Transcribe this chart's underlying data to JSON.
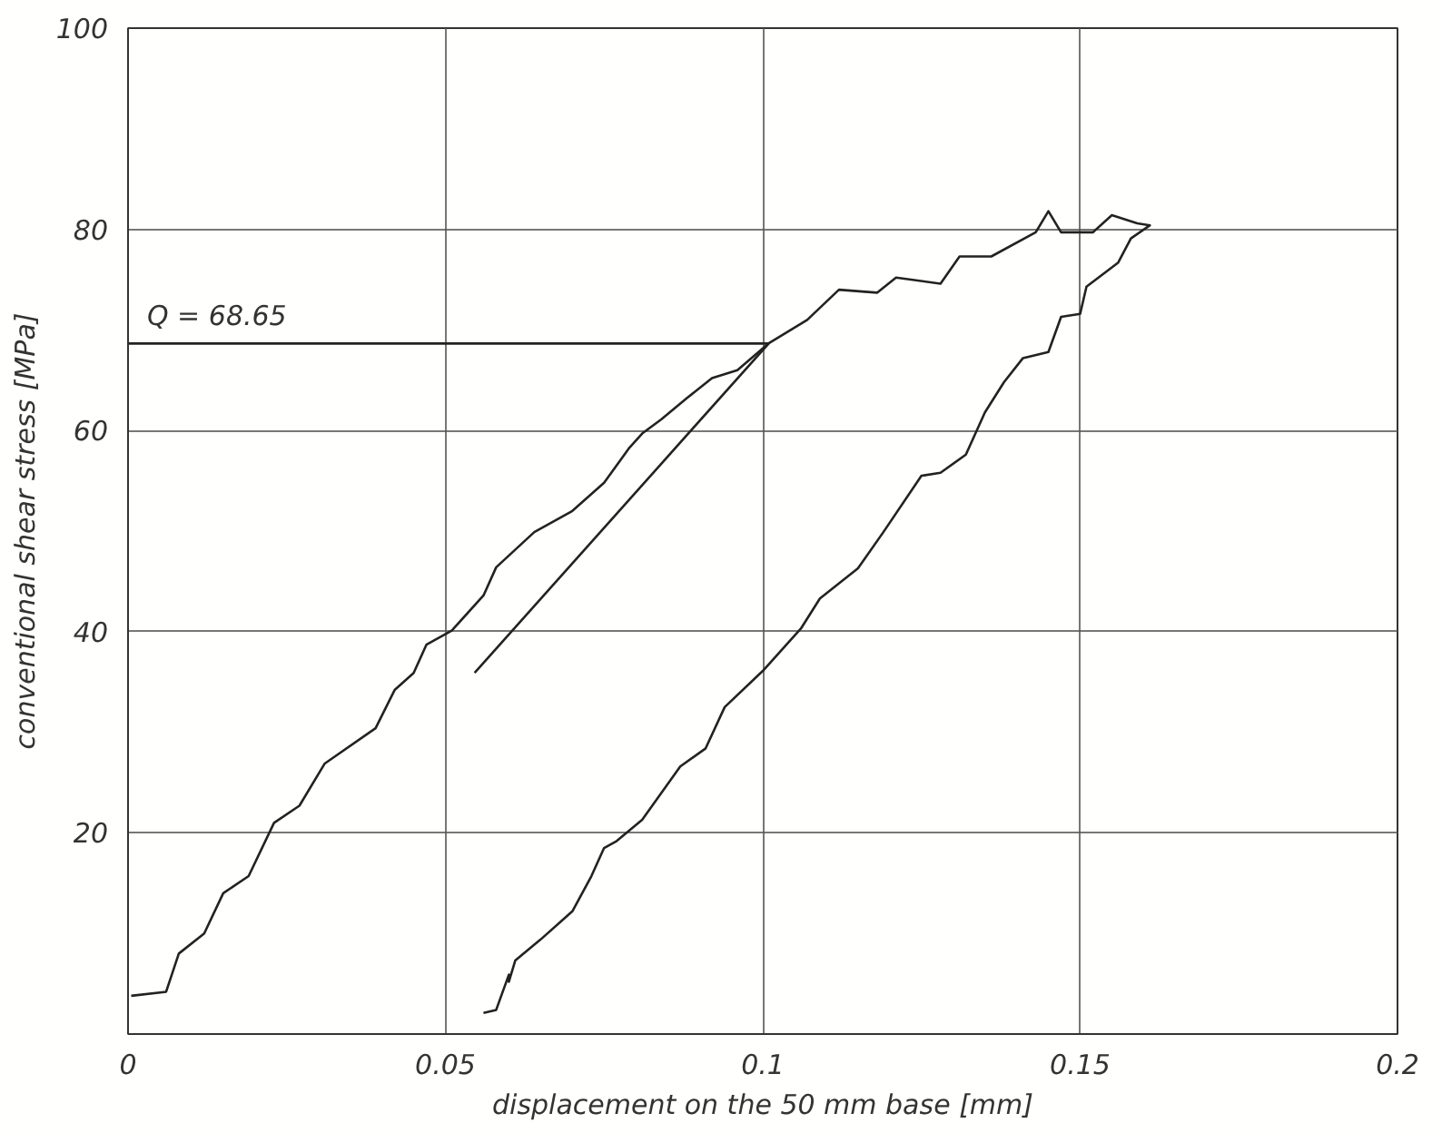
{
  "chart_data": {
    "type": "line",
    "xlabel": "displacement on the 50 mm base [mm]",
    "ylabel": "conventional shear stress [MPa]",
    "xlim": [
      0,
      0.2
    ],
    "ylim": [
      0,
      100
    ],
    "xticks": [
      0,
      0.05,
      0.1,
      0.15,
      0.2
    ],
    "yticks": [
      20,
      40,
      60,
      80,
      100
    ],
    "grid": true,
    "annotations": [
      {
        "text": "Q = 68.65",
        "x": 0.003,
        "y": 68.65
      }
    ],
    "series": [
      {
        "color": "#222222",
        "x": [
          0.0005,
          0.006,
          0.008,
          0.012,
          0.015,
          0.019,
          0.023,
          0.027,
          0.031,
          0.039,
          0.042,
          0.045,
          0.047,
          0.051,
          0.056,
          0.058,
          0.064,
          0.07,
          0.075,
          0.079,
          0.081,
          0.084,
          0.088,
          0.092,
          0.096,
          0.101,
          0.107,
          0.112,
          0.118,
          0.121,
          0.128,
          0.131,
          0.136,
          0.143,
          0.145,
          0.147,
          0.152,
          0.155,
          0.159,
          0.161,
          0.158,
          0.156,
          0.151,
          0.15,
          0.147,
          0.145,
          0.141,
          0.138,
          0.135,
          0.132,
          0.128,
          0.125,
          0.119,
          0.115,
          0.109,
          0.106,
          0.1,
          0.094,
          0.091,
          0.087,
          0.081,
          0.077,
          0.075,
          0.073,
          0.07,
          0.065,
          0.061,
          0.06,
          0.06,
          0.058,
          0.056
        ],
        "values": [
          3.8,
          4.2,
          8,
          10,
          14,
          15.7,
          21,
          22.7,
          26.9,
          30.4,
          34.2,
          35.9,
          38.7,
          40.1,
          43.6,
          46.4,
          49.9,
          52,
          54.8,
          58.3,
          59.7,
          61.1,
          63.2,
          65.2,
          66,
          68.7,
          71,
          74,
          73.7,
          75.2,
          74.6,
          77.3,
          77.3,
          79.7,
          81.8,
          79.7,
          79.7,
          81.4,
          80.6,
          80.4,
          79.1,
          76.7,
          74.3,
          71.6,
          71.3,
          67.8,
          67.2,
          64.8,
          61.8,
          57.6,
          55.8,
          55.5,
          49.9,
          46.3,
          43.3,
          40.3,
          36.1,
          32.5,
          28.4,
          26.6,
          21.3,
          19.2,
          18.5,
          15.7,
          12.2,
          9.4,
          7.3,
          5.2,
          5.9,
          2.4,
          2.1
        ]
      },
      {
        "color": "#222222",
        "x": [
          0.0546,
          0.101
        ],
        "values": [
          35.9,
          68.7
        ]
      },
      {
        "color": "#222222",
        "x": [
          0,
          0.101
        ],
        "values": [
          68.65,
          68.65
        ]
      }
    ]
  }
}
